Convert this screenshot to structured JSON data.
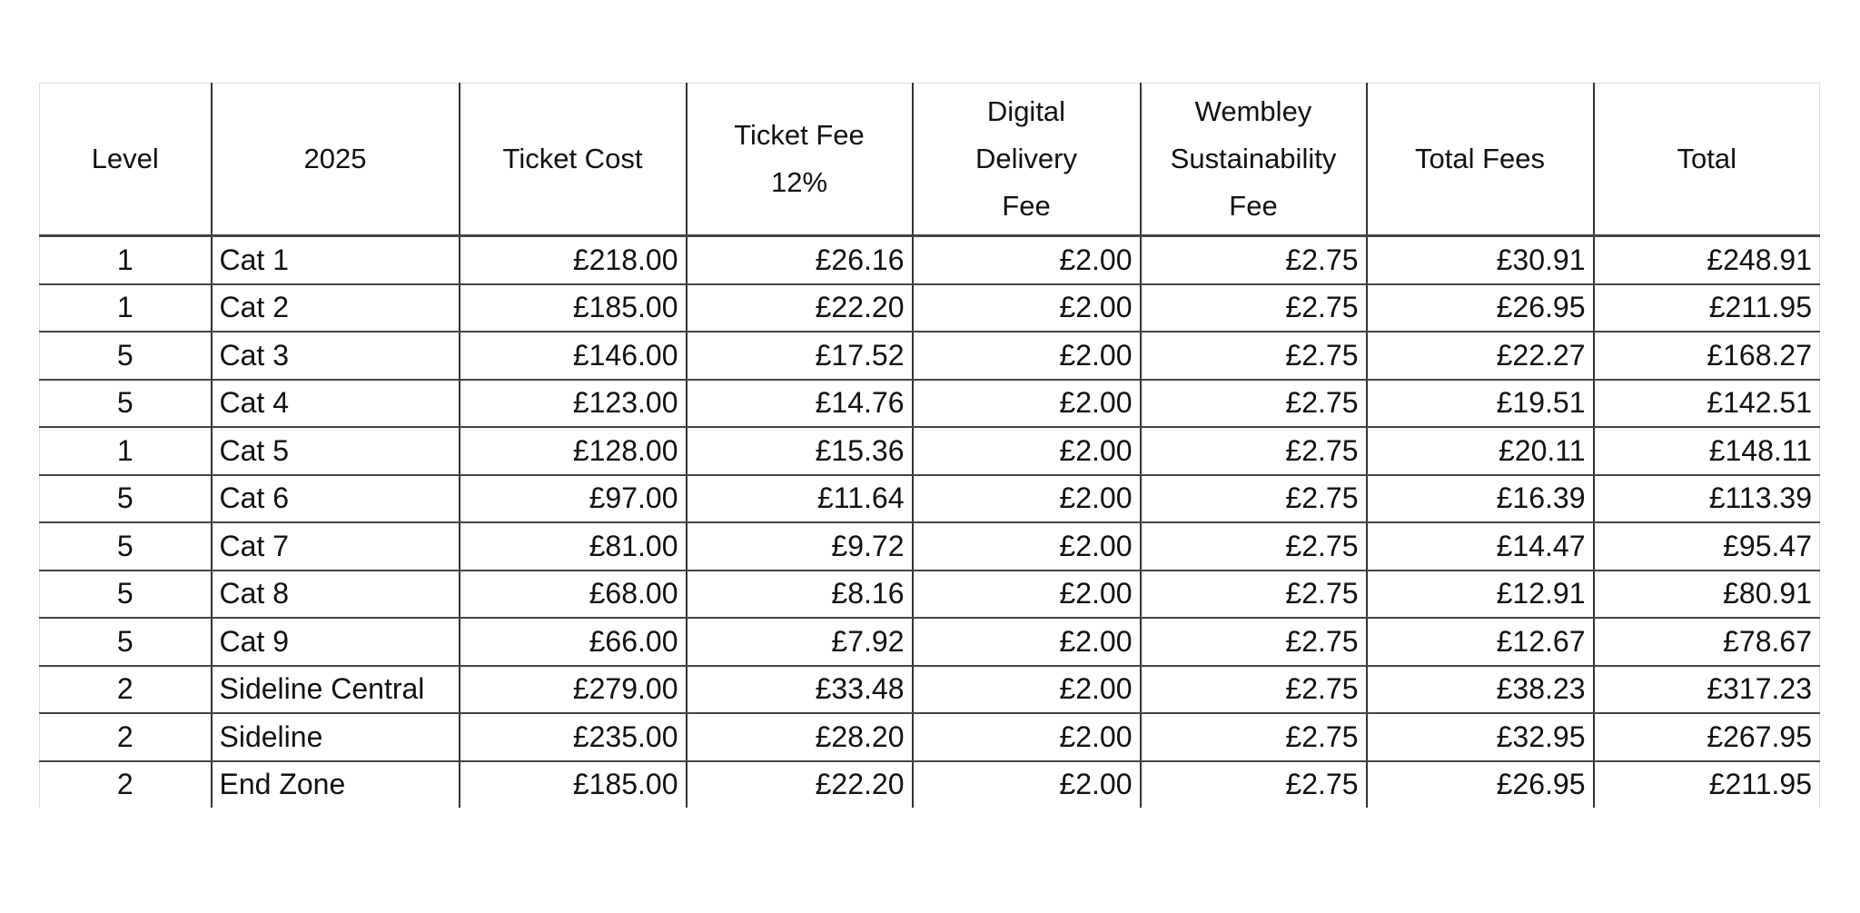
{
  "table": {
    "headers": [
      "Level",
      "2025",
      "Ticket Cost",
      "Ticket Fee 12%",
      "Digital Delivery Fee",
      "Wembley Sustainability Fee",
      "Total Fees",
      "Total"
    ],
    "rows": [
      [
        "1",
        "Cat 1",
        "£218.00",
        "£26.16",
        "£2.00",
        "£2.75",
        "£30.91",
        "£248.91"
      ],
      [
        "1",
        "Cat 2",
        "£185.00",
        "£22.20",
        "£2.00",
        "£2.75",
        "£26.95",
        "£211.95"
      ],
      [
        "5",
        "Cat 3",
        "£146.00",
        "£17.52",
        "£2.00",
        "£2.75",
        "£22.27",
        "£168.27"
      ],
      [
        "5",
        "Cat 4",
        "£123.00",
        "£14.76",
        "£2.00",
        "£2.75",
        "£19.51",
        "£142.51"
      ],
      [
        "1",
        "Cat 5",
        "£128.00",
        "£15.36",
        "£2.00",
        "£2.75",
        "£20.11",
        "£148.11"
      ],
      [
        "5",
        "Cat 6",
        "£97.00",
        "£11.64",
        "£2.00",
        "£2.75",
        "£16.39",
        "£113.39"
      ],
      [
        "5",
        "Cat 7",
        "£81.00",
        "£9.72",
        "£2.00",
        "£2.75",
        "£14.47",
        "£95.47"
      ],
      [
        "5",
        "Cat 8",
        "£68.00",
        "£8.16",
        "£2.00",
        "£2.75",
        "£12.91",
        "£80.91"
      ],
      [
        "5",
        "Cat 9",
        "£66.00",
        "£7.92",
        "£2.00",
        "£2.75",
        "£12.67",
        "£78.67"
      ],
      [
        "2",
        "Sideline Central",
        "£279.00",
        "£33.48",
        "£2.00",
        "£2.75",
        "£38.23",
        "£317.23"
      ],
      [
        "2",
        "Sideline",
        "£235.00",
        "£28.20",
        "£2.00",
        "£2.75",
        "£32.95",
        "£267.95"
      ],
      [
        "2",
        "End Zone",
        "£185.00",
        "£22.20",
        "£2.00",
        "£2.75",
        "£26.95",
        "£211.95"
      ]
    ]
  }
}
